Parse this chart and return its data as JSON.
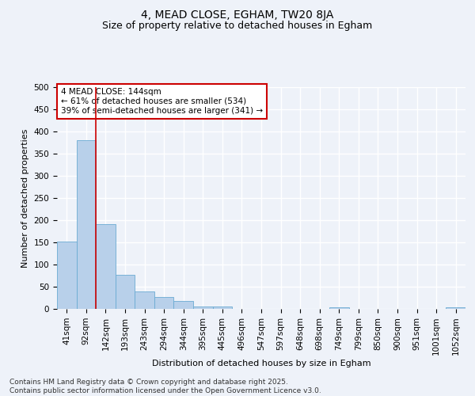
{
  "title_line1": "4, MEAD CLOSE, EGHAM, TW20 8JA",
  "title_line2": "Size of property relative to detached houses in Egham",
  "xlabel": "Distribution of detached houses by size in Egham",
  "ylabel": "Number of detached properties",
  "bar_values": [
    152,
    380,
    191,
    76,
    39,
    26,
    17,
    6,
    5,
    0,
    0,
    0,
    0,
    0,
    4,
    0,
    0,
    0,
    0,
    0,
    3
  ],
  "categories": [
    "41sqm",
    "92sqm",
    "142sqm",
    "193sqm",
    "243sqm",
    "294sqm",
    "344sqm",
    "395sqm",
    "445sqm",
    "496sqm",
    "547sqm",
    "597sqm",
    "648sqm",
    "698sqm",
    "749sqm",
    "799sqm",
    "850sqm",
    "900sqm",
    "951sqm",
    "1001sqm",
    "1052sqm"
  ],
  "bar_color": "#b8d0ea",
  "bar_edge_color": "#6aabd2",
  "vline_x_index": 2,
  "annotation_text": "4 MEAD CLOSE: 144sqm\n← 61% of detached houses are smaller (534)\n39% of semi-detached houses are larger (341) →",
  "annotation_box_facecolor": "#ffffff",
  "annotation_box_edgecolor": "#cc0000",
  "vline_color": "#cc0000",
  "ylim": [
    0,
    500
  ],
  "yticks": [
    0,
    50,
    100,
    150,
    200,
    250,
    300,
    350,
    400,
    450,
    500
  ],
  "footer_line1": "Contains HM Land Registry data © Crown copyright and database right 2025.",
  "footer_line2": "Contains public sector information licensed under the Open Government Licence v3.0.",
  "bg_color": "#eef2f9",
  "grid_color": "#ffffff",
  "title_fontsize": 10,
  "subtitle_fontsize": 9,
  "axis_label_fontsize": 8,
  "tick_fontsize": 7.5,
  "annotation_fontsize": 7.5,
  "footer_fontsize": 6.5
}
